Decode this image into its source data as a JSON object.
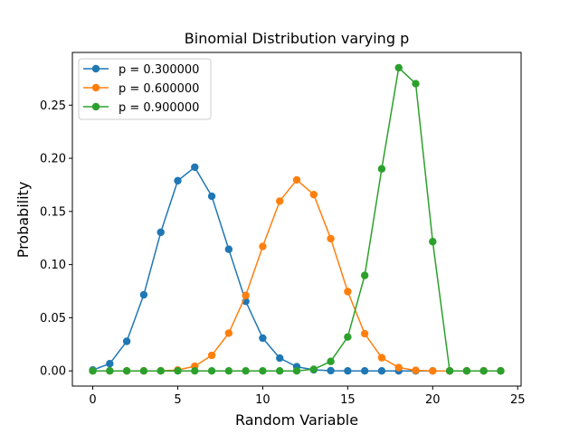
{
  "chart_data": {
    "type": "line",
    "title": "Binomial Distribution varying p",
    "xlabel": "Random Variable",
    "ylabel": "Probability",
    "xlim": [
      -1.2,
      25.2
    ],
    "ylim": [
      -0.0143,
      0.2996
    ],
    "x_ticks": [
      0,
      5,
      10,
      15,
      20,
      25
    ],
    "y_ticks": [
      0.0,
      0.05,
      0.1,
      0.15,
      0.2,
      0.25
    ],
    "x_tick_labels": [
      "0",
      "5",
      "10",
      "15",
      "20",
      "25"
    ],
    "y_tick_labels": [
      "0.00",
      "0.05",
      "0.10",
      "0.15",
      "0.20",
      "0.25"
    ],
    "grid": false,
    "legend_position": "top-left",
    "x": [
      0,
      1,
      2,
      3,
      4,
      5,
      6,
      7,
      8,
      9,
      10,
      11,
      12,
      13,
      14,
      15,
      16,
      17,
      18,
      19,
      20,
      21,
      22,
      23,
      24
    ],
    "series": [
      {
        "name": "p = 0.300000",
        "color": "#1f77b4",
        "values": [
          0.0008,
          0.0068,
          0.0278,
          0.0716,
          0.1304,
          0.1789,
          0.1916,
          0.1643,
          0.1144,
          0.0654,
          0.0308,
          0.012,
          0.0039,
          0.001,
          0.0002,
          0.0,
          0.0,
          0.0,
          0.0,
          0.0,
          0.0,
          0.0,
          0.0,
          0.0,
          0.0
        ]
      },
      {
        "name": "p = 0.600000",
        "color": "#ff7f0e",
        "values": [
          0.0,
          0.0,
          0.0,
          0.0,
          0.0001,
          0.0008,
          0.0044,
          0.0146,
          0.0355,
          0.071,
          0.1171,
          0.1597,
          0.1797,
          0.1659,
          0.1244,
          0.0746,
          0.035,
          0.0124,
          0.0031,
          0.0005,
          0.0,
          0.0,
          0.0,
          0.0,
          0.0
        ]
      },
      {
        "name": "p = 0.900000",
        "color": "#2ca02c",
        "values": [
          0.0,
          0.0,
          0.0,
          0.0,
          0.0,
          0.0,
          0.0,
          0.0,
          0.0,
          0.0,
          0.0,
          0.0,
          0.0,
          0.0015,
          0.0089,
          0.0319,
          0.0898,
          0.1901,
          0.2852,
          0.2702,
          0.1216,
          0.0,
          0.0,
          0.0,
          0.0
        ]
      }
    ]
  }
}
